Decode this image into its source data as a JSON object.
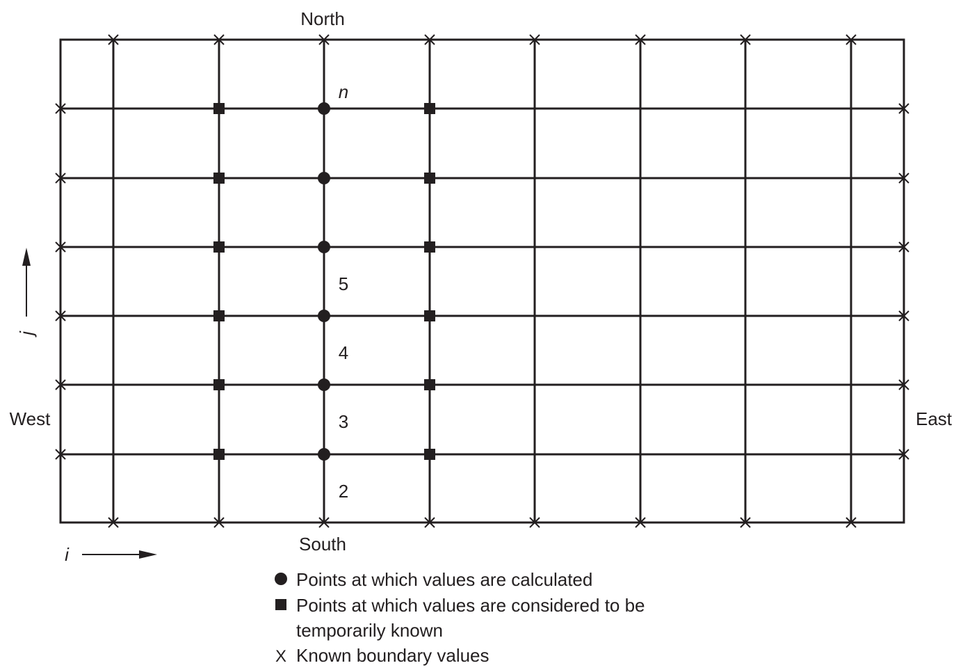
{
  "compass": {
    "north": "North",
    "south": "South",
    "west": "West",
    "east": "East"
  },
  "axes": {
    "i_label": "i",
    "j_label": "j"
  },
  "row_labels": [
    "n",
    "5",
    "4",
    "3",
    "2"
  ],
  "legend": {
    "calculated": "Points at which values are calculated",
    "temp_known_line1": "Points at which values are considered to be",
    "temp_known_line2": "temporarily known",
    "boundary_symbol": "X",
    "boundary": "Known boundary values"
  },
  "colors": {
    "ink": "#231f20"
  }
}
